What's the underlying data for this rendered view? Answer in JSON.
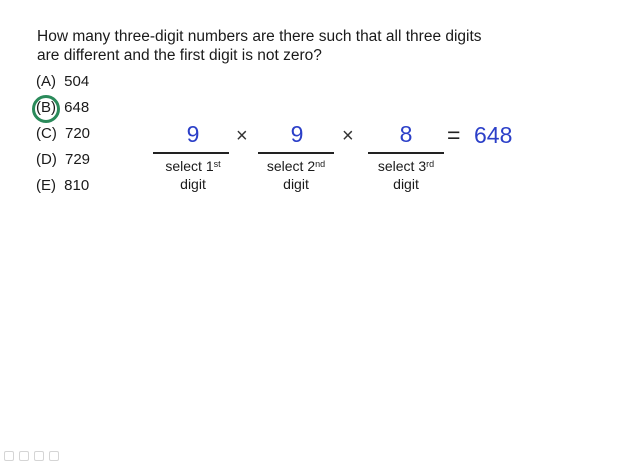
{
  "question": {
    "line1": "How many three-digit numbers are there such that all three digits",
    "line2": "are different and the first digit is not zero?"
  },
  "options": [
    {
      "letter": "(A)",
      "value": "504"
    },
    {
      "letter": "(B)",
      "value": "648",
      "selected": true
    },
    {
      "letter": "(C)",
      "value": "720"
    },
    {
      "letter": "(D)",
      "value": "729"
    },
    {
      "letter": "(E)",
      "value": "810"
    }
  ],
  "work": {
    "first": {
      "number": "9",
      "label_a": "select 1",
      "sup": "st",
      "label_b": "digit"
    },
    "second": {
      "number": "9",
      "label_a": "select 2",
      "sup": "nd",
      "label_b": "digit"
    },
    "third": {
      "number": "8",
      "label_a": "select 3",
      "sup": "rd",
      "label_b": "digit"
    },
    "times_symbol": "×",
    "equals_symbol": "=",
    "result": "648"
  },
  "colors": {
    "ink_blue": "#2b3fc8",
    "selection_green": "#2a8a5a"
  },
  "toolbar_icons": [
    "pointer-icon",
    "pen-icon",
    "highlighter-icon",
    "eraser-icon"
  ]
}
